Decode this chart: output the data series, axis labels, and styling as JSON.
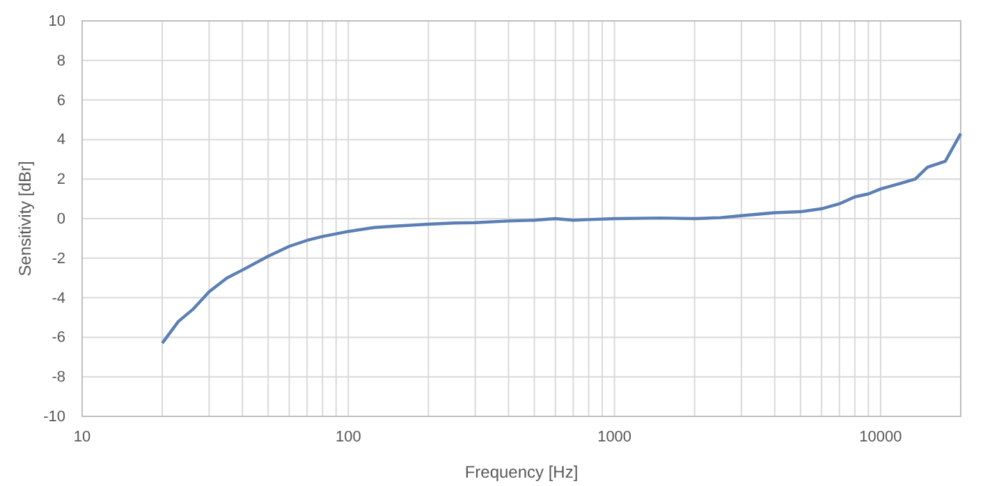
{
  "chart_data": {
    "type": "line",
    "xlabel": "Frequency [Hz]",
    "ylabel": "Sensitivity [dBr]",
    "log": "x",
    "grid": true,
    "marker": "none",
    "line_style": "solid",
    "xlim": [
      10,
      20000
    ],
    "xticks": [
      10,
      100,
      1000,
      10000
    ],
    "ylim": [
      -10,
      10
    ],
    "yticks": [
      -10,
      -8,
      -6,
      -4,
      -2,
      0,
      2,
      4,
      6,
      8,
      10
    ],
    "x": [
      20,
      23,
      26,
      30,
      35,
      40,
      50,
      60,
      70,
      80,
      100,
      125,
      150,
      200,
      250,
      300,
      400,
      500,
      600,
      700,
      800,
      1000,
      1500,
      2000,
      2500,
      3000,
      4000,
      5000,
      6000,
      7000,
      8000,
      9000,
      10000,
      12000,
      13500,
      15000,
      17500,
      20000
    ],
    "series": [
      {
        "color": "#5b7fb5",
        "values": [
          -6.3,
          -5.2,
          -4.6,
          -3.7,
          -3.0,
          -2.6,
          -1.9,
          -1.4,
          -1.1,
          -0.9,
          -0.65,
          -0.45,
          -0.38,
          -0.28,
          -0.22,
          -0.2,
          -0.12,
          -0.08,
          0.0,
          -0.08,
          -0.05,
          0,
          0.03,
          0,
          0.05,
          0.15,
          0.3,
          0.35,
          0.5,
          0.75,
          1.1,
          1.25,
          1.5,
          1.8,
          2.0,
          2.6,
          2.9,
          4.3
        ]
      }
    ]
  }
}
